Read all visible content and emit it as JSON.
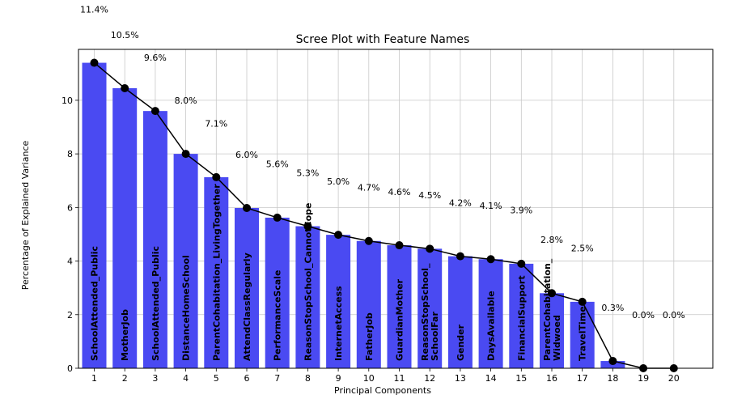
{
  "chart_data": {
    "type": "bar",
    "title": "Scree Plot with Feature Names",
    "xlabel": "Principal Components",
    "ylabel": "Percentage of Explained Variance",
    "categories": [
      "1",
      "2",
      "3",
      "4",
      "5",
      "6",
      "7",
      "8",
      "9",
      "10",
      "11",
      "12",
      "13",
      "14",
      "15",
      "16",
      "17",
      "18",
      "19",
      "20"
    ],
    "bar_labels": [
      [
        "SchoolAttended_Public"
      ],
      [
        "MotherJob"
      ],
      [
        "SchoolAttended_Public"
      ],
      [
        "DistanceHomeSchool"
      ],
      [
        "ParentCohabitation_LivingTogether"
      ],
      [
        "AttendClassRegularly"
      ],
      [
        "PerformanceScale"
      ],
      [
        "ReasonStopSchool_CannotCope"
      ],
      [
        "InternetAccess"
      ],
      [
        "FatherJob"
      ],
      [
        "GuardianMother"
      ],
      [
        "ReasonStopSchool_",
        "SchoolFar"
      ],
      [
        "Gender"
      ],
      [
        "DaysAvailable"
      ],
      [
        "FinancialSupport"
      ],
      [
        "ParentCohabitation_",
        "Widwoed"
      ],
      [
        "TravelTime"
      ],
      [],
      [],
      []
    ],
    "values": [
      11.4,
      10.45,
      9.6,
      8.0,
      7.13,
      5.98,
      5.62,
      5.3,
      4.98,
      4.75,
      4.59,
      4.46,
      4.18,
      4.07,
      3.9,
      2.8,
      2.48,
      0.27,
      0.0,
      0.0
    ],
    "value_labels": [
      "11.4%",
      "10.5%",
      "9.6%",
      "8.0%",
      "7.1%",
      "6.0%",
      "5.6%",
      "5.3%",
      "5.0%",
      "4.7%",
      "4.6%",
      "4.5%",
      "4.2%",
      "4.1%",
      "3.9%",
      "2.8%",
      "2.5%",
      "0.3%",
      "0.0%",
      "0.0%"
    ],
    "yticks": [
      "0",
      "2",
      "4",
      "6",
      "8",
      "10"
    ],
    "ylim": [
      0,
      11.9
    ],
    "grid": true,
    "colors": {
      "bar": "#4a4af2",
      "line": "#000000",
      "grid": "#c8c8c8"
    }
  }
}
